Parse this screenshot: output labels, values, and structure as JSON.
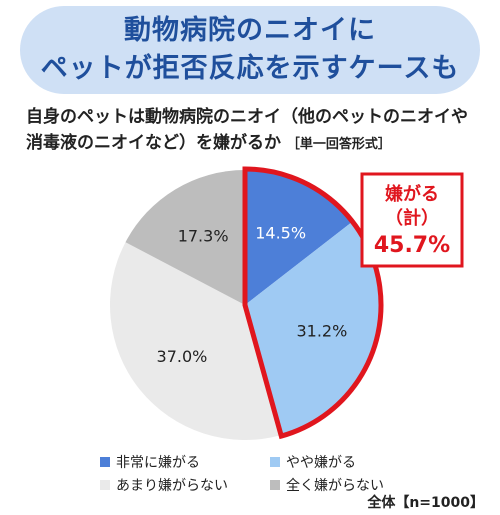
{
  "banner": {
    "line1": "動物病院のニオイに",
    "line2": "ペットが拒否反応を示すケースも"
  },
  "question": {
    "line1": "自身のペットは動物病院のニオイ（他のペットのニオイや",
    "line2_text": "消毒液のニオイなど）を嫌がるか",
    "line2_format": "［単一回答形式］"
  },
  "callout": {
    "line1": "嫌がる",
    "line2": "（計）",
    "line3": "45.7%",
    "color": "#e0161e"
  },
  "footnote": "全体【n=1000】",
  "chart_data": {
    "type": "pie",
    "start": "12 o'clock",
    "direction": "clockwise",
    "slices": [
      {
        "label": "非常に嫌がる",
        "value": 14.5,
        "value_label": "14.5%",
        "color": "#4d7fd8",
        "text_color": "#ffffff"
      },
      {
        "label": "やや嫌がる",
        "value": 31.2,
        "value_label": "31.2%",
        "color": "#9fcaf3",
        "text_color": "#222222"
      },
      {
        "label": "あまり嫌がらない",
        "value": 37.0,
        "value_label": "37.0%",
        "color": "#eaeaea",
        "text_color": "#222222"
      },
      {
        "label": "全く嫌がらない",
        "value": 17.3,
        "value_label": "17.3%",
        "color": "#bdbdbd",
        "text_color": "#222222"
      }
    ],
    "highlight": {
      "slices": [
        "非常に嫌がる",
        "やや嫌がる"
      ],
      "total_label": "45.7%",
      "outline_color": "#e0161e"
    },
    "legend_placement": "bottom"
  }
}
